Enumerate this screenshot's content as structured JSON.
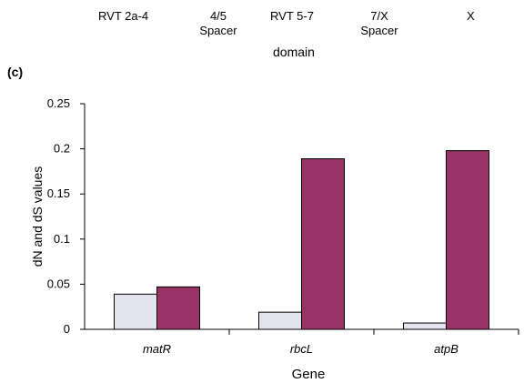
{
  "top_panel": {
    "categories": [
      {
        "line1": "RVT 2a-4",
        "line2": ""
      },
      {
        "line1": "4/5",
        "line2": "Spacer"
      },
      {
        "line1": "RVT 5-7",
        "line2": ""
      },
      {
        "line1": "7/X",
        "line2": "Spacer"
      },
      {
        "line1": "X",
        "line2": ""
      }
    ],
    "axis_title": "domain"
  },
  "panel_label": "(c)",
  "chart_data": {
    "type": "bar",
    "categories": [
      "matR",
      "rbcL",
      "atpB"
    ],
    "series": [
      {
        "values": [
          0.039,
          0.019,
          0.007
        ],
        "color": "#e4e4ee"
      },
      {
        "values": [
          0.047,
          0.189,
          0.198
        ],
        "color": "#993366"
      }
    ],
    "xlabel": "Gene",
    "ylabel": "dN and dS values",
    "ylim": [
      0,
      0.25
    ],
    "yticks": [
      "0",
      "0.05",
      "0.1",
      "0.15",
      "0.2",
      "0.25"
    ],
    "grid": false,
    "legend": "none"
  }
}
